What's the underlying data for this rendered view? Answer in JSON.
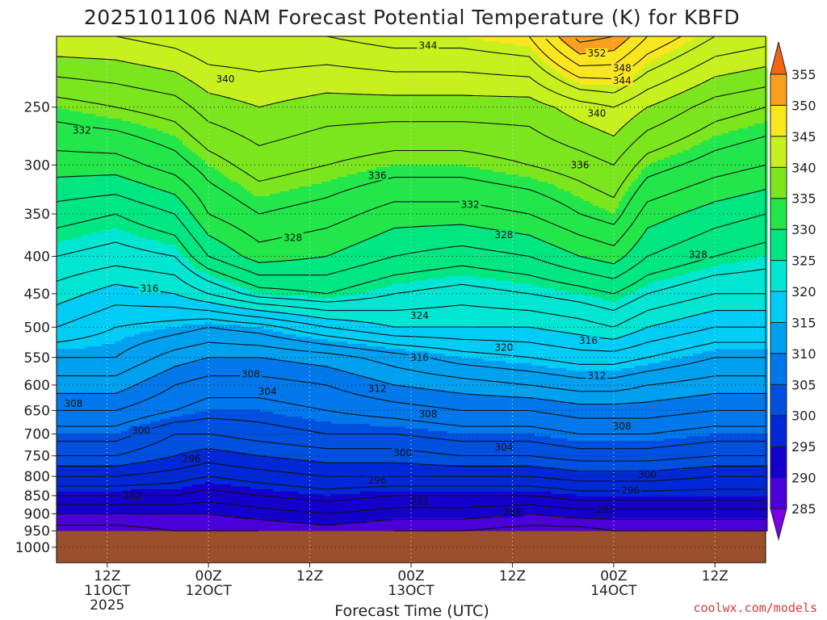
{
  "title": "2025101106 NAM Forecast Potential Temperature (K) for KBFD",
  "credit": "coolwx.com/models",
  "chart_data": {
    "type": "heatmap",
    "title": "2025101106 NAM Forecast Potential Temperature (K) for KBFD",
    "xlabel": "Forecast Time (UTC)",
    "ylabel": "",
    "x_ticks": [
      {
        "hour": 6,
        "lines": [
          "12Z",
          "11OCT",
          "2025"
        ]
      },
      {
        "hour": 18,
        "lines": [
          "00Z",
          "12OCT"
        ]
      },
      {
        "hour": 30,
        "lines": [
          "12Z"
        ]
      },
      {
        "hour": 42,
        "lines": [
          "00Z",
          "13OCT"
        ]
      },
      {
        "hour": 54,
        "lines": [
          "12Z"
        ]
      },
      {
        "hour": 66,
        "lines": [
          "00Z",
          "14OCT"
        ]
      },
      {
        "hour": 78,
        "lines": [
          "12Z"
        ]
      }
    ],
    "xlim": [
      0,
      84
    ],
    "y_ticks": [
      250,
      300,
      350,
      400,
      450,
      500,
      550,
      600,
      650,
      700,
      750,
      800,
      850,
      900,
      950,
      1000
    ],
    "ylim": [
      200,
      1050
    ],
    "y_scale": "log",
    "ground_level": 950,
    "colorbar": {
      "levels": [
        285,
        290,
        295,
        300,
        305,
        310,
        315,
        320,
        325,
        330,
        335,
        340,
        345,
        350,
        355
      ],
      "colors": [
        "#7b00e6",
        "#4b00d9",
        "#1400cc",
        "#0028d6",
        "#0050e0",
        "#0078ec",
        "#00a0f0",
        "#00cdf5",
        "#00e6d2",
        "#00e680",
        "#22e64a",
        "#7be61e",
        "#c8f01e",
        "#fae61e",
        "#faa01e",
        "#f06414"
      ],
      "extend": "both",
      "placement": "right"
    },
    "columns_hours": [
      0,
      7,
      14,
      18,
      24,
      32,
      40,
      48,
      56,
      62,
      66,
      70,
      78,
      84
    ],
    "columns": [
      {
        "hour": 0,
        "profile": [
          [
            950,
            287
          ],
          [
            900,
            290
          ],
          [
            850,
            294
          ],
          [
            800,
            298
          ],
          [
            750,
            302
          ],
          [
            700,
            305
          ],
          [
            650,
            308
          ],
          [
            600,
            311
          ],
          [
            550,
            314
          ],
          [
            500,
            318
          ],
          [
            450,
            321
          ],
          [
            400,
            324
          ],
          [
            350,
            327
          ],
          [
            300,
            331
          ],
          [
            250,
            335
          ],
          [
            200,
            342
          ]
        ]
      },
      {
        "hour": 7,
        "profile": [
          [
            950,
            287
          ],
          [
            900,
            290
          ],
          [
            850,
            294
          ],
          [
            800,
            298
          ],
          [
            750,
            302
          ],
          [
            700,
            305
          ],
          [
            650,
            308
          ],
          [
            600,
            311
          ],
          [
            550,
            314
          ],
          [
            500,
            316
          ],
          [
            450,
            319
          ],
          [
            400,
            323
          ],
          [
            350,
            326
          ],
          [
            300,
            331
          ],
          [
            250,
            336
          ],
          [
            200,
            342
          ]
        ]
      },
      {
        "hour": 14,
        "profile": [
          [
            950,
            288
          ],
          [
            900,
            290
          ],
          [
            850,
            294
          ],
          [
            800,
            297
          ],
          [
            750,
            300
          ],
          [
            700,
            302
          ],
          [
            650,
            306
          ],
          [
            600,
            308
          ],
          [
            550,
            311
          ],
          [
            500,
            315
          ],
          [
            450,
            320
          ],
          [
            400,
            324
          ],
          [
            350,
            328
          ],
          [
            300,
            333
          ],
          [
            250,
            337
          ],
          [
            200,
            343
          ]
        ]
      },
      {
        "hour": 18,
        "profile": [
          [
            950,
            288
          ],
          [
            900,
            290
          ],
          [
            850,
            293
          ],
          [
            800,
            296
          ],
          [
            750,
            299
          ],
          [
            700,
            302
          ],
          [
            650,
            305
          ],
          [
            600,
            307
          ],
          [
            550,
            310
          ],
          [
            500,
            314
          ],
          [
            450,
            322
          ],
          [
            400,
            328
          ],
          [
            350,
            332
          ],
          [
            300,
            335
          ],
          [
            250,
            339
          ],
          [
            200,
            344
          ]
        ]
      },
      {
        "hour": 24,
        "profile": [
          [
            950,
            288
          ],
          [
            900,
            291
          ],
          [
            850,
            294
          ],
          [
            800,
            297
          ],
          [
            750,
            300
          ],
          [
            700,
            303
          ],
          [
            650,
            305
          ],
          [
            600,
            307
          ],
          [
            550,
            310
          ],
          [
            500,
            315
          ],
          [
            450,
            325
          ],
          [
            400,
            331
          ],
          [
            350,
            334
          ],
          [
            300,
            337
          ],
          [
            250,
            340
          ],
          [
            200,
            344
          ]
        ]
      },
      {
        "hour": 32,
        "profile": [
          [
            950,
            289
          ],
          [
            900,
            292
          ],
          [
            850,
            295
          ],
          [
            800,
            298
          ],
          [
            750,
            301
          ],
          [
            700,
            304
          ],
          [
            650,
            306
          ],
          [
            600,
            308
          ],
          [
            550,
            311
          ],
          [
            500,
            318
          ],
          [
            450,
            326
          ],
          [
            400,
            330
          ],
          [
            350,
            333
          ],
          [
            300,
            336
          ],
          [
            250,
            339
          ],
          [
            200,
            344
          ]
        ]
      },
      {
        "hour": 40,
        "profile": [
          [
            950,
            288
          ],
          [
            900,
            291
          ],
          [
            850,
            294
          ],
          [
            800,
            298
          ],
          [
            750,
            301
          ],
          [
            700,
            304
          ],
          [
            650,
            307
          ],
          [
            600,
            310
          ],
          [
            550,
            313
          ],
          [
            500,
            320
          ],
          [
            450,
            324
          ],
          [
            400,
            328
          ],
          [
            350,
            331
          ],
          [
            300,
            335
          ],
          [
            250,
            339
          ],
          [
            200,
            345
          ]
        ]
      },
      {
        "hour": 48,
        "profile": [
          [
            950,
            288
          ],
          [
            900,
            291
          ],
          [
            850,
            294
          ],
          [
            800,
            298
          ],
          [
            750,
            302
          ],
          [
            700,
            305
          ],
          [
            650,
            308
          ],
          [
            600,
            311
          ],
          [
            550,
            315
          ],
          [
            500,
            320
          ],
          [
            450,
            323
          ],
          [
            400,
            327
          ],
          [
            350,
            331
          ],
          [
            300,
            335
          ],
          [
            250,
            339
          ],
          [
            200,
            345
          ]
        ]
      },
      {
        "hour": 56,
        "profile": [
          [
            950,
            287
          ],
          [
            900,
            290
          ],
          [
            850,
            294
          ],
          [
            800,
            298
          ],
          [
            750,
            302
          ],
          [
            700,
            305
          ],
          [
            650,
            308
          ],
          [
            600,
            312
          ],
          [
            550,
            316
          ],
          [
            500,
            320
          ],
          [
            450,
            324
          ],
          [
            400,
            328
          ],
          [
            350,
            332
          ],
          [
            300,
            336
          ],
          [
            250,
            339
          ],
          [
            200,
            346
          ]
        ]
      },
      {
        "hour": 62,
        "profile": [
          [
            950,
            287
          ],
          [
            900,
            291
          ],
          [
            850,
            295
          ],
          [
            800,
            299
          ],
          [
            750,
            303
          ],
          [
            700,
            306
          ],
          [
            650,
            309
          ],
          [
            600,
            313
          ],
          [
            550,
            317
          ],
          [
            500,
            321
          ],
          [
            450,
            325
          ],
          [
            400,
            330
          ],
          [
            350,
            334
          ],
          [
            300,
            337
          ],
          [
            250,
            341
          ],
          [
            200,
            353
          ]
        ]
      },
      {
        "hour": 66,
        "profile": [
          [
            950,
            288
          ],
          [
            900,
            291
          ],
          [
            850,
            295
          ],
          [
            800,
            299
          ],
          [
            750,
            303
          ],
          [
            700,
            306
          ],
          [
            650,
            309
          ],
          [
            600,
            313
          ],
          [
            550,
            317
          ],
          [
            500,
            322
          ],
          [
            450,
            326
          ],
          [
            400,
            331
          ],
          [
            350,
            335
          ],
          [
            300,
            338
          ],
          [
            250,
            342
          ],
          [
            200,
            352
          ]
        ]
      },
      {
        "hour": 70,
        "profile": [
          [
            950,
            288
          ],
          [
            900,
            291
          ],
          [
            850,
            295
          ],
          [
            800,
            299
          ],
          [
            750,
            303
          ],
          [
            700,
            306
          ],
          [
            650,
            309
          ],
          [
            600,
            312
          ],
          [
            550,
            316
          ],
          [
            500,
            320
          ],
          [
            450,
            324
          ],
          [
            400,
            328
          ],
          [
            350,
            331
          ],
          [
            300,
            335
          ],
          [
            250,
            340
          ],
          [
            200,
            348
          ]
        ]
      },
      {
        "hour": 78,
        "profile": [
          [
            950,
            288
          ],
          [
            900,
            291
          ],
          [
            850,
            295
          ],
          [
            800,
            298
          ],
          [
            750,
            302
          ],
          [
            700,
            305
          ],
          [
            650,
            308
          ],
          [
            600,
            311
          ],
          [
            550,
            314
          ],
          [
            500,
            318
          ],
          [
            450,
            322
          ],
          [
            400,
            326
          ],
          [
            350,
            329
          ],
          [
            300,
            333
          ],
          [
            250,
            337
          ],
          [
            200,
            344
          ]
        ]
      },
      {
        "hour": 84,
        "profile": [
          [
            950,
            288
          ],
          [
            900,
            291
          ],
          [
            850,
            295
          ],
          [
            800,
            298
          ],
          [
            750,
            302
          ],
          [
            700,
            305
          ],
          [
            650,
            308
          ],
          [
            600,
            311
          ],
          [
            550,
            314
          ],
          [
            500,
            318
          ],
          [
            450,
            322
          ],
          [
            400,
            325
          ],
          [
            350,
            328
          ],
          [
            300,
            332
          ],
          [
            250,
            336
          ],
          [
            200,
            343
          ]
        ]
      }
    ],
    "contour_labels": [
      {
        "value": "344",
        "hour": 44,
        "p": 206
      },
      {
        "value": "352",
        "hour": 64,
        "p": 211
      },
      {
        "value": "348",
        "hour": 67,
        "p": 221
      },
      {
        "value": "344",
        "hour": 67,
        "p": 230
      },
      {
        "value": "340",
        "hour": 20,
        "p": 229
      },
      {
        "value": "340",
        "hour": 64,
        "p": 255
      },
      {
        "value": "332",
        "hour": 3,
        "p": 269
      },
      {
        "value": "336",
        "hour": 38,
        "p": 310
      },
      {
        "value": "336",
        "hour": 62,
        "p": 300
      },
      {
        "value": "332",
        "hour": 49,
        "p": 340
      },
      {
        "value": "328",
        "hour": 28,
        "p": 377
      },
      {
        "value": "328",
        "hour": 53,
        "p": 374
      },
      {
        "value": "328",
        "hour": 76,
        "p": 398
      },
      {
        "value": "316",
        "hour": 11,
        "p": 443
      },
      {
        "value": "324",
        "hour": 43,
        "p": 482
      },
      {
        "value": "320",
        "hour": 53,
        "p": 533
      },
      {
        "value": "316",
        "hour": 63,
        "p": 522
      },
      {
        "value": "316",
        "hour": 43,
        "p": 550
      },
      {
        "value": "308",
        "hour": 23,
        "p": 580
      },
      {
        "value": "304",
        "hour": 25,
        "p": 612
      },
      {
        "value": "312",
        "hour": 38,
        "p": 607
      },
      {
        "value": "312",
        "hour": 64,
        "p": 583
      },
      {
        "value": "308",
        "hour": 2,
        "p": 636
      },
      {
        "value": "308",
        "hour": 44,
        "p": 658
      },
      {
        "value": "308",
        "hour": 67,
        "p": 683
      },
      {
        "value": "300",
        "hour": 10,
        "p": 693
      },
      {
        "value": "304",
        "hour": 53,
        "p": 730
      },
      {
        "value": "300",
        "hour": 41,
        "p": 743
      },
      {
        "value": "296",
        "hour": 16,
        "p": 757
      },
      {
        "value": "300",
        "hour": 70,
        "p": 796
      },
      {
        "value": "296",
        "hour": 38,
        "p": 810
      },
      {
        "value": "296",
        "hour": 68,
        "p": 836
      },
      {
        "value": "292",
        "hour": 9,
        "p": 850
      },
      {
        "value": "292",
        "hour": 43,
        "p": 866
      },
      {
        "value": "292",
        "hour": 65,
        "p": 888
      },
      {
        "value": "288",
        "hour": 54,
        "p": 897
      }
    ]
  }
}
